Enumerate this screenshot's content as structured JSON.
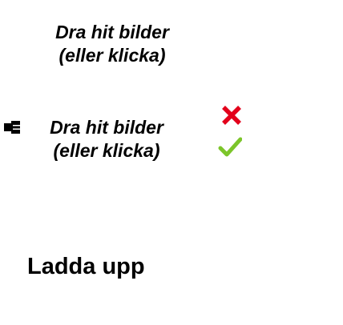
{
  "dropzones": [
    {
      "line1": "Dra hit bilder",
      "line2": "(eller klicka)"
    },
    {
      "line1": "Dra hit bilder",
      "line2": "(eller klicka)"
    }
  ],
  "icons": {
    "pointer": "pointing-hand-icon",
    "reject": "red-x-icon",
    "accept": "green-check-icon"
  },
  "colors": {
    "reject": "#e3001b",
    "accept": "#7cc52a"
  },
  "upload_button": {
    "label": "Ladda upp"
  }
}
